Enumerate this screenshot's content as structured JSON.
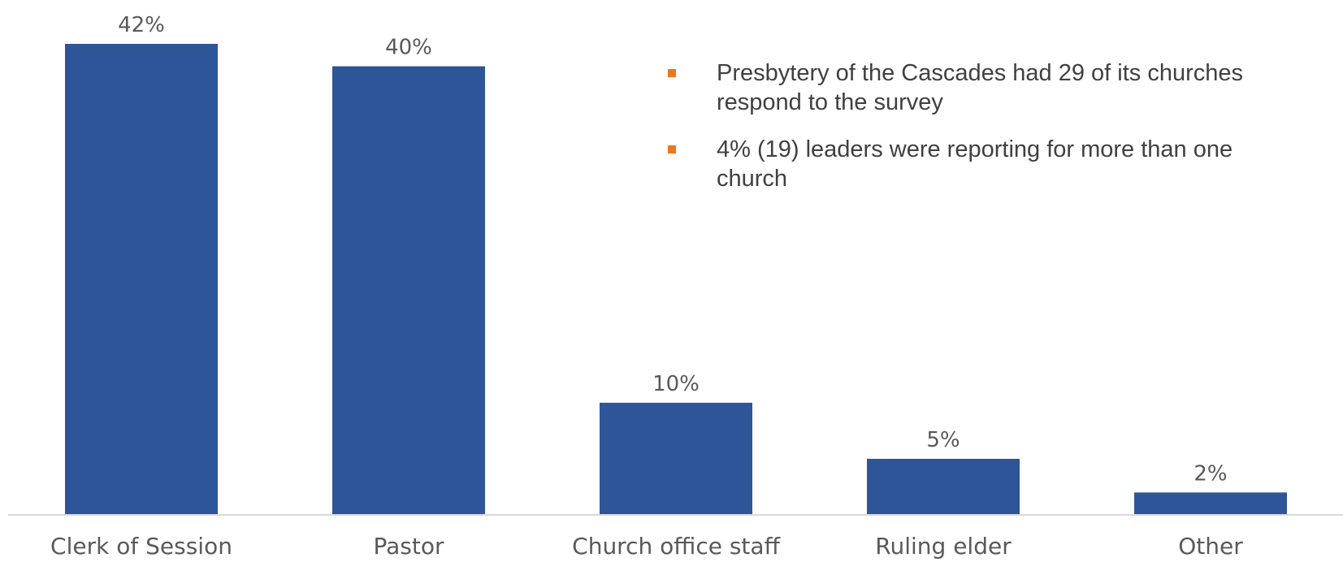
{
  "chart_data": {
    "type": "bar",
    "categories": [
      "Clerk of Session",
      "Pastor",
      "Church office staff",
      "Ruling elder",
      "Other"
    ],
    "values": [
      42,
      40,
      10,
      5,
      2
    ],
    "value_labels": [
      "42%",
      "40%",
      "10%",
      "5%",
      "2%"
    ],
    "title": "",
    "xlabel": "",
    "ylabel": "",
    "ylim": [
      0,
      42
    ],
    "grid": false,
    "legend": "none",
    "bar_color": "#2E5597",
    "axis_color": "#D9D9D9"
  },
  "notes": {
    "bullet_color": "#E87722",
    "items": [
      "Presbytery of the Cascades had 29 of its churches respond to the survey",
      "4% (19) leaders were reporting for more than one church"
    ]
  }
}
